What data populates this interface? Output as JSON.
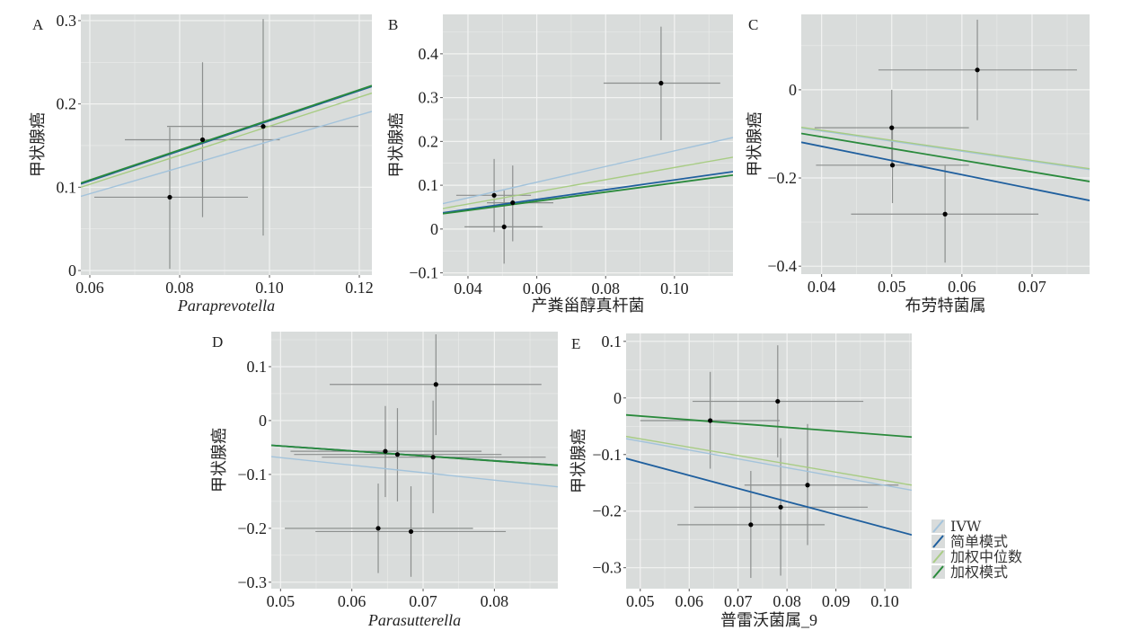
{
  "colors": {
    "panel_bg": "#d9dcdb",
    "grid": "#f2f3f2",
    "errorbar": "#8c8f8e",
    "point": "#000000",
    "IVW": "#a3c3db",
    "简单模式": "#1f5f9e",
    "加权中位数": "#a8cc84",
    "加权模式": "#2a8a3c"
  },
  "legend": {
    "items": [
      {
        "key": "IVW",
        "label": "IVW"
      },
      {
        "key": "简单模式",
        "label": "简单模式"
      },
      {
        "key": "加权中位数",
        "label": "加权中位数"
      },
      {
        "key": "加权模式",
        "label": "加权模式"
      }
    ]
  },
  "chart_data": [
    {
      "type": "scatter",
      "panel": "A",
      "xlabel": "Paraprevotella",
      "xlabel_italic": true,
      "ylabel": "甲状腺癌",
      "xlim": [
        0.058,
        0.1228
      ],
      "ylim": [
        -0.0054,
        0.3075
      ],
      "xticks": [
        0.06,
        0.08,
        0.1,
        0.12
      ],
      "xtick_labels": [
        "0.06",
        "0.08",
        "0.10",
        "0.12"
      ],
      "yticks": [
        0,
        0.1,
        0.2,
        0.3
      ],
      "ytick_labels": [
        "0",
        "0.1",
        "0.2",
        "0.3"
      ],
      "points": [
        {
          "x": 0.0778,
          "y": 0.088,
          "xmin": 0.061,
          "xmax": 0.0952,
          "ymin": 0.002,
          "ymax": 0.172
        },
        {
          "x": 0.0851,
          "y": 0.157,
          "xmin": 0.0678,
          "xmax": 0.1023,
          "ymin": 0.064,
          "ymax": 0.25
        },
        {
          "x": 0.0986,
          "y": 0.173,
          "xmin": 0.0772,
          "xmax": 0.1198,
          "ymin": 0.042,
          "ymax": 0.302
        }
      ],
      "lines": [
        {
          "method": "IVW",
          "x": [
            0.058,
            0.1228
          ],
          "y": [
            0.089,
            0.191
          ]
        },
        {
          "method": "加权中位数",
          "x": [
            0.058,
            0.1228
          ],
          "y": [
            0.1,
            0.213
          ]
        },
        {
          "method": "简单模式",
          "x": [
            0.058,
            0.1228
          ],
          "y": [
            0.104,
            0.221
          ]
        },
        {
          "method": "加权模式",
          "x": [
            0.058,
            0.1228
          ],
          "y": [
            0.105,
            0.222
          ]
        }
      ]
    },
    {
      "type": "scatter",
      "panel": "B",
      "xlabel": "产粪甾醇真杆菌",
      "xlabel_italic": false,
      "ylabel": "甲状腺癌",
      "xlim": [
        0.0327,
        0.117
      ],
      "ylim": [
        -0.107,
        0.49
      ],
      "xticks": [
        0.04,
        0.06,
        0.08,
        0.1
      ],
      "xtick_labels": [
        "0.04",
        "0.06",
        "0.08",
        "0.10"
      ],
      "yticks": [
        -0.1,
        0,
        0.1,
        0.2,
        0.3,
        0.4
      ],
      "ytick_labels": [
        "−0.1",
        "0",
        "0.1",
        "0.2",
        "0.3",
        "0.4"
      ],
      "points": [
        {
          "x": 0.0476,
          "y": 0.077,
          "xmin": 0.0366,
          "xmax": 0.0583,
          "ymin": -0.007,
          "ymax": 0.16
        },
        {
          "x": 0.0505,
          "y": 0.005,
          "xmin": 0.039,
          "xmax": 0.0617,
          "ymin": -0.079,
          "ymax": 0.088
        },
        {
          "x": 0.053,
          "y": 0.06,
          "xmin": 0.0455,
          "xmax": 0.0648,
          "ymin": -0.028,
          "ymax": 0.145
        },
        {
          "x": 0.0961,
          "y": 0.333,
          "xmin": 0.0794,
          "xmax": 0.1133,
          "ymin": 0.203,
          "ymax": 0.462
        }
      ],
      "lines": [
        {
          "method": "IVW",
          "x": [
            0.0327,
            0.117
          ],
          "y": [
            0.058,
            0.209
          ]
        },
        {
          "method": "加权中位数",
          "x": [
            0.0327,
            0.117
          ],
          "y": [
            0.047,
            0.164
          ]
        },
        {
          "method": "加权模式",
          "x": [
            0.0327,
            0.117
          ],
          "y": [
            0.035,
            0.123
          ]
        },
        {
          "method": "简单模式",
          "x": [
            0.0327,
            0.117
          ],
          "y": [
            0.037,
            0.131
          ]
        }
      ]
    },
    {
      "type": "scatter",
      "panel": "C",
      "xlabel": "布劳特菌属",
      "xlabel_italic": false,
      "ylabel": "甲状腺癌",
      "xlim": [
        0.0371,
        0.0782
      ],
      "ylim": [
        -0.418,
        0.171
      ],
      "xticks": [
        0.04,
        0.05,
        0.06,
        0.07
      ],
      "xtick_labels": [
        "0.04",
        "0.05",
        "0.06",
        "0.07"
      ],
      "yticks": [
        -0.4,
        -0.2,
        0
      ],
      "ytick_labels": [
        "−0.4",
        "−0.2",
        "0"
      ],
      "points": [
        {
          "x": 0.0622,
          "y": 0.045,
          "xmin": 0.0481,
          "xmax": 0.0764,
          "ymin": -0.069,
          "ymax": 0.159
        },
        {
          "x": 0.05,
          "y": -0.086,
          "xmin": 0.039,
          "xmax": 0.061,
          "ymin": -0.169,
          "ymax": 0.0
        },
        {
          "x": 0.0501,
          "y": -0.171,
          "xmin": 0.0392,
          "xmax": 0.061,
          "ymin": -0.257,
          "ymax": -0.086
        },
        {
          "x": 0.0576,
          "y": -0.282,
          "xmin": 0.0442,
          "xmax": 0.0709,
          "ymin": -0.392,
          "ymax": -0.171
        }
      ],
      "lines": [
        {
          "method": "IVW",
          "x": [
            0.0371,
            0.0782
          ],
          "y": [
            -0.087,
            -0.181
          ]
        },
        {
          "method": "加权中位数",
          "x": [
            0.0371,
            0.0782
          ],
          "y": [
            -0.085,
            -0.179
          ]
        },
        {
          "method": "加权模式",
          "x": [
            0.0371,
            0.0782
          ],
          "y": [
            -0.099,
            -0.208
          ]
        },
        {
          "method": "简单模式",
          "x": [
            0.0371,
            0.0782
          ],
          "y": [
            -0.119,
            -0.251
          ]
        }
      ]
    },
    {
      "type": "scatter",
      "panel": "D",
      "xlabel": "Parasutterella",
      "xlabel_italic": true,
      "ylabel": "甲状腺癌",
      "xlim": [
        0.0487,
        0.0889
      ],
      "ylim": [
        -0.312,
        0.165
      ],
      "xticks": [
        0.05,
        0.06,
        0.07,
        0.08
      ],
      "xtick_labels": [
        "0.05",
        "0.06",
        "0.07",
        "0.08"
      ],
      "yticks": [
        -0.3,
        -0.2,
        -0.1,
        0,
        0.1
      ],
      "ytick_labels": [
        "−0.3",
        "−0.2",
        "−0.1",
        "0",
        "0.1"
      ],
      "points": [
        {
          "x": 0.0718,
          "y": 0.067,
          "xmin": 0.0569,
          "xmax": 0.0866,
          "ymin": -0.027,
          "ymax": 0.16
        },
        {
          "x": 0.0647,
          "y": -0.057,
          "xmin": 0.0514,
          "xmax": 0.0782,
          "ymin": -0.142,
          "ymax": 0.027
        },
        {
          "x": 0.0664,
          "y": -0.063,
          "xmin": 0.0519,
          "xmax": 0.081,
          "ymin": -0.15,
          "ymax": 0.023
        },
        {
          "x": 0.0714,
          "y": -0.068,
          "xmin": 0.0558,
          "xmax": 0.0872,
          "ymin": -0.172,
          "ymax": 0.037
        },
        {
          "x": 0.0637,
          "y": -0.2,
          "xmin": 0.0506,
          "xmax": 0.077,
          "ymin": -0.283,
          "ymax": -0.117
        },
        {
          "x": 0.0683,
          "y": -0.206,
          "xmin": 0.0549,
          "xmax": 0.0816,
          "ymin": -0.29,
          "ymax": -0.122
        }
      ],
      "lines": [
        {
          "method": "IVW",
          "x": [
            0.0487,
            0.0889
          ],
          "y": [
            -0.067,
            -0.123
          ]
        },
        {
          "method": "加权中位数",
          "x": [
            0.0487,
            0.0889
          ],
          "y": [
            -0.046,
            -0.084
          ]
        },
        {
          "method": "简单模式",
          "x": [
            0.0487,
            0.0889
          ],
          "y": [
            -0.046,
            -0.083
          ]
        },
        {
          "method": "加权模式",
          "x": [
            0.0487,
            0.0889
          ],
          "y": [
            -0.046,
            -0.083
          ]
        }
      ]
    },
    {
      "type": "scatter",
      "panel": "E",
      "xlabel": "普雷沃菌属_9",
      "xlabel_italic": false,
      "ylabel": "甲状腺癌",
      "xlim": [
        0.0471,
        0.1055
      ],
      "ylim": [
        -0.337,
        0.114
      ],
      "xticks": [
        0.05,
        0.06,
        0.07,
        0.08,
        0.09,
        0.1
      ],
      "xtick_labels": [
        "0.05",
        "0.06",
        "0.07",
        "0.08",
        "0.09",
        "0.10"
      ],
      "yticks": [
        -0.3,
        -0.2,
        -0.1,
        0,
        0.1
      ],
      "ytick_labels": [
        "−0.3",
        "−0.2",
        "−0.1",
        "0",
        "0.1"
      ],
      "points": [
        {
          "x": 0.0781,
          "y": -0.006,
          "xmin": 0.0607,
          "xmax": 0.0956,
          "ymin": -0.105,
          "ymax": 0.093
        },
        {
          "x": 0.0643,
          "y": -0.04,
          "xmin": 0.05,
          "xmax": 0.0785,
          "ymin": -0.125,
          "ymax": 0.046
        },
        {
          "x": 0.0842,
          "y": -0.154,
          "xmin": 0.0713,
          "xmax": 0.1028,
          "ymin": -0.26,
          "ymax": -0.046
        },
        {
          "x": 0.0787,
          "y": -0.193,
          "xmin": 0.061,
          "xmax": 0.0965,
          "ymin": -0.314,
          "ymax": -0.071
        },
        {
          "x": 0.0726,
          "y": -0.224,
          "xmin": 0.0576,
          "xmax": 0.0877,
          "ymin": -0.318,
          "ymax": -0.129
        }
      ],
      "lines": [
        {
          "method": "IVW",
          "x": [
            0.0471,
            0.1055
          ],
          "y": [
            -0.072,
            -0.163
          ]
        },
        {
          "method": "加权中位数",
          "x": [
            0.0471,
            0.1055
          ],
          "y": [
            -0.068,
            -0.154
          ]
        },
        {
          "method": "加权模式",
          "x": [
            0.0471,
            0.1055
          ],
          "y": [
            -0.03,
            -0.069
          ]
        },
        {
          "method": "简单模式",
          "x": [
            0.0471,
            0.1055
          ],
          "y": [
            -0.107,
            -0.242
          ]
        }
      ]
    }
  ]
}
